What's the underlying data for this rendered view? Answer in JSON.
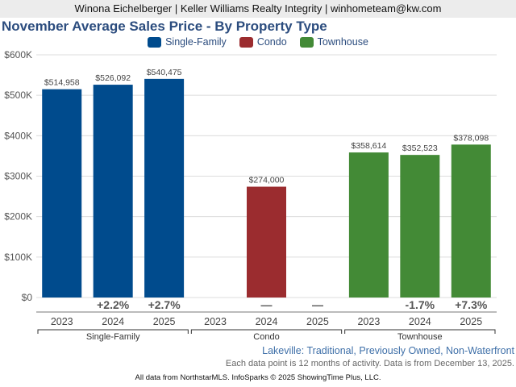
{
  "header": {
    "agent_line": "Winona Eichelberger | Keller Williams Realty Integrity | winhometeam@kw.com"
  },
  "chart_data": {
    "type": "bar",
    "title": "November Average Sales Price - By Property Type",
    "xlabel": "",
    "ylabel": "",
    "ylim": [
      0,
      600000
    ],
    "yticks": [
      0,
      100000,
      200000,
      300000,
      400000,
      500000,
      600000
    ],
    "ytick_labels": [
      "$0",
      "$100K",
      "$200K",
      "$300K",
      "$400K",
      "$500K",
      "$600K"
    ],
    "grid": true,
    "legend_position": "top-center",
    "categories": [
      "2023",
      "2024",
      "2025"
    ],
    "groups": [
      {
        "name": "Single-Family",
        "color": "#004b8d",
        "values": [
          514958,
          526092,
          540475
        ],
        "value_labels": [
          "$514,958",
          "$526,092",
          "$540,475"
        ],
        "change_labels": [
          "",
          "+2.2%",
          "+2.7%"
        ]
      },
      {
        "name": "Condo",
        "color": "#9b2c2f",
        "values": [
          null,
          274000,
          null
        ],
        "value_labels": [
          "",
          "$274,000",
          ""
        ],
        "change_labels": [
          "",
          "—",
          "—"
        ]
      },
      {
        "name": "Townhouse",
        "color": "#438a36",
        "values": [
          358614,
          352523,
          378098
        ],
        "value_labels": [
          "$358,614",
          "$352,523",
          "$378,098"
        ],
        "change_labels": [
          "",
          "-1.7%",
          "+7.3%"
        ]
      }
    ]
  },
  "subtitle": "Lakeville: Traditional, Previously Owned, Non-Waterfront",
  "note": "Each data point is 12 months of activity. Data is from December 13, 2025.",
  "footer": "All data from NorthstarMLS. InfoSparks © 2025 ShowingTime Plus, LLC."
}
